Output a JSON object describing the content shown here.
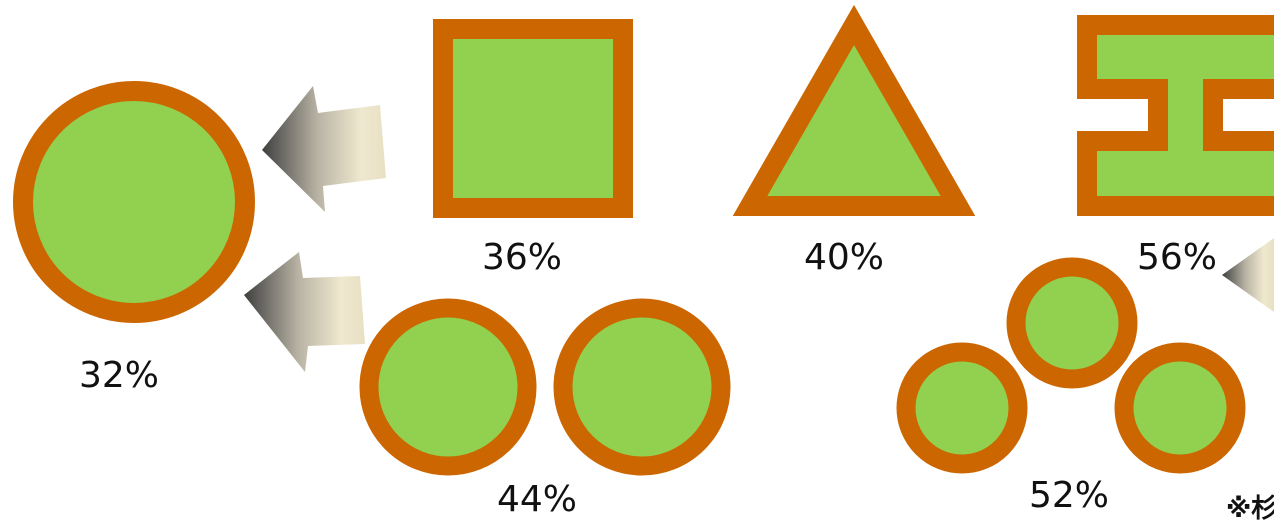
{
  "colors": {
    "border": "#cc6600",
    "fill": "#92d050",
    "arrow_dark": "#4a4a4a",
    "arrow_light": "#efe8cf"
  },
  "shapes": [
    {
      "id": "single-circle",
      "icon": "circle-shape",
      "label": "32%"
    },
    {
      "id": "square",
      "icon": "square-shape",
      "label": "36%"
    },
    {
      "id": "triangle",
      "icon": "triangle-shape",
      "label": "40%"
    },
    {
      "id": "i-beam",
      "icon": "i-beam-shape",
      "label": "56%"
    },
    {
      "id": "two-circles",
      "icon": "two-circles-shape",
      "label": "44%"
    },
    {
      "id": "three-circles",
      "icon": "three-circles-shape",
      "label": "52%"
    }
  ],
  "labels": {
    "single_circle": "32%",
    "square": "36%",
    "triangle": "40%",
    "i_beam": "56%",
    "two_circles": "44%",
    "three_circles": "52%"
  },
  "note": "※杉"
}
